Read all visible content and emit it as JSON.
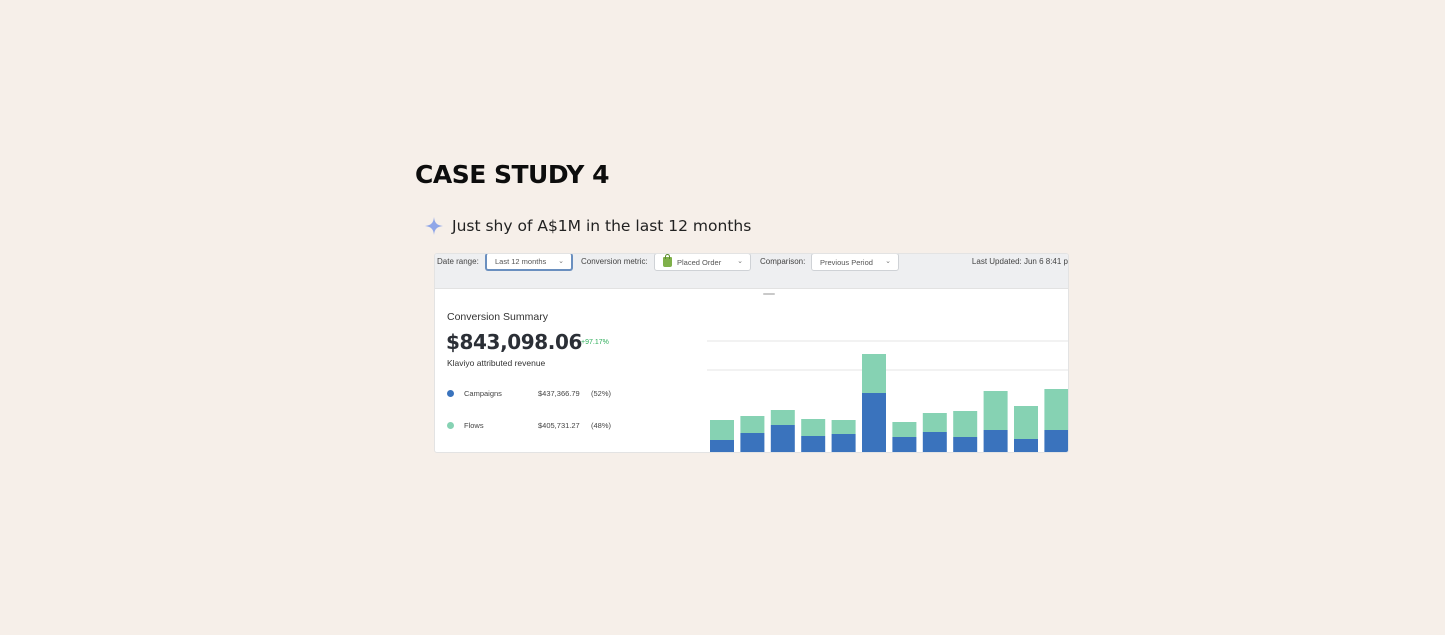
{
  "heading": "CASE STUDY 4",
  "subline": "Just shy of A$1M in the last 12 months",
  "toolbar": {
    "date_range_label": "Date range:",
    "date_range_value": "Last 12 months",
    "conversion_metric_label": "Conversion metric:",
    "conversion_metric_value": "Placed Order",
    "comparison_label": "Comparison:",
    "comparison_value": "Previous Period",
    "last_updated": "Last Updated: Jun 6 8:41 p"
  },
  "summary": {
    "title": "Conversion Summary",
    "total": "$843,098.06",
    "change": "+97.17%",
    "sublabel": "Klaviyo attributed revenue",
    "legend": [
      {
        "name": "Campaigns",
        "amount": "$437,366.79",
        "percent": "(52%)",
        "color": "#3a73bd"
      },
      {
        "name": "Flows",
        "amount": "$405,731.27",
        "percent": "(48%)",
        "color": "#86d2b3"
      }
    ]
  },
  "chart_data": {
    "type": "bar",
    "stacked": true,
    "series": [
      {
        "name": "Campaigns",
        "color": "#3a73bd",
        "values": [
          14,
          21,
          29,
          18,
          20,
          61,
          17,
          22,
          17,
          24,
          15,
          24
        ]
      },
      {
        "name": "Flows",
        "color": "#86d2b3",
        "values": [
          20,
          17,
          15,
          17,
          14,
          39,
          15,
          19,
          26,
          39,
          33,
          41
        ]
      }
    ],
    "ylim": [
      0,
      113
    ],
    "grid": true
  },
  "colors": {
    "background": "#f6efe9",
    "sparkle": "#8fa6e8"
  }
}
